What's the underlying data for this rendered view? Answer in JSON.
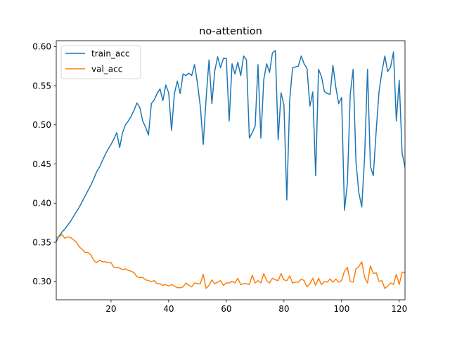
{
  "chart_data": {
    "type": "line",
    "title": "no-attention",
    "xlabel": "",
    "ylabel": "",
    "xlim": [
      1,
      122
    ],
    "ylim": [
      0.2765,
      0.6075
    ],
    "xticks": [
      20,
      40,
      60,
      80,
      100,
      120
    ],
    "yticks": [
      0.3,
      0.35,
      0.4,
      0.45,
      0.5,
      0.55,
      0.6
    ],
    "xtick_labels": [
      "20",
      "40",
      "60",
      "80",
      "100",
      "120"
    ],
    "ytick_labels": [
      "0.30",
      "0.35",
      "0.40",
      "0.45",
      "0.50",
      "0.55",
      "0.60"
    ],
    "grid": false,
    "legend_position": "top-left",
    "x": [
      1,
      2,
      3,
      4,
      5,
      6,
      7,
      8,
      9,
      10,
      11,
      12,
      13,
      14,
      15,
      16,
      17,
      18,
      19,
      20,
      21,
      22,
      23,
      24,
      25,
      26,
      27,
      28,
      29,
      30,
      31,
      32,
      33,
      34,
      35,
      36,
      37,
      38,
      39,
      40,
      41,
      42,
      43,
      44,
      45,
      46,
      47,
      48,
      49,
      50,
      51,
      52,
      53,
      54,
      55,
      56,
      57,
      58,
      59,
      60,
      61,
      62,
      63,
      64,
      65,
      66,
      67,
      68,
      69,
      70,
      71,
      72,
      73,
      74,
      75,
      76,
      77,
      78,
      79,
      80,
      81,
      82,
      83,
      84,
      85,
      86,
      87,
      88,
      89,
      90,
      91,
      92,
      93,
      94,
      95,
      96,
      97,
      98,
      99,
      100,
      101,
      102,
      103,
      104,
      105,
      106,
      107,
      108,
      109,
      110,
      111,
      112,
      113,
      114,
      115,
      116,
      117,
      118,
      119,
      120,
      121,
      122
    ],
    "series": [
      {
        "name": "train_acc",
        "color": "#1f77b4",
        "values": [
          0.351,
          0.358,
          0.363,
          0.367,
          0.372,
          0.377,
          0.383,
          0.389,
          0.395,
          0.402,
          0.409,
          0.416,
          0.423,
          0.431,
          0.44,
          0.446,
          0.454,
          0.462,
          0.469,
          0.475,
          0.482,
          0.49,
          0.471,
          0.49,
          0.5,
          0.505,
          0.511,
          0.519,
          0.528,
          0.522,
          0.505,
          0.497,
          0.487,
          0.527,
          0.532,
          0.54,
          0.546,
          0.531,
          0.551,
          0.541,
          0.493,
          0.54,
          0.556,
          0.54,
          0.565,
          0.563,
          0.566,
          0.563,
          0.577,
          0.553,
          0.523,
          0.475,
          0.534,
          0.583,
          0.527,
          0.569,
          0.587,
          0.573,
          0.585,
          0.585,
          0.505,
          0.578,
          0.565,
          0.58,
          0.563,
          0.588,
          0.583,
          0.483,
          0.49,
          0.498,
          0.577,
          0.483,
          0.558,
          0.578,
          0.567,
          0.592,
          0.595,
          0.481,
          0.541,
          0.525,
          0.404,
          0.532,
          0.573,
          0.574,
          0.575,
          0.588,
          0.578,
          0.572,
          0.524,
          0.542,
          0.435,
          0.571,
          0.562,
          0.543,
          0.54,
          0.539,
          0.576,
          0.548,
          0.527,
          0.535,
          0.391,
          0.425,
          0.539,
          0.571,
          0.452,
          0.413,
          0.395,
          0.46,
          0.571,
          0.447,
          0.435,
          0.492,
          0.543,
          0.568,
          0.588,
          0.568,
          0.574,
          0.593,
          0.505,
          0.557,
          0.464,
          0.446
        ]
      },
      {
        "name": "val_acc",
        "color": "#ff7f0e",
        "values": [
          0.356,
          0.357,
          0.36,
          0.355,
          0.357,
          0.356,
          0.353,
          0.35,
          0.344,
          0.341,
          0.337,
          0.337,
          0.334,
          0.327,
          0.324,
          0.327,
          0.325,
          0.325,
          0.324,
          0.324,
          0.318,
          0.318,
          0.317,
          0.315,
          0.316,
          0.314,
          0.313,
          0.311,
          0.306,
          0.305,
          0.305,
          0.302,
          0.301,
          0.3,
          0.301,
          0.297,
          0.297,
          0.295,
          0.296,
          0.294,
          0.296,
          0.294,
          0.292,
          0.292,
          0.293,
          0.298,
          0.295,
          0.293,
          0.298,
          0.297,
          0.297,
          0.309,
          0.291,
          0.295,
          0.302,
          0.297,
          0.299,
          0.301,
          0.295,
          0.298,
          0.298,
          0.3,
          0.298,
          0.304,
          0.296,
          0.297,
          0.297,
          0.296,
          0.308,
          0.298,
          0.301,
          0.298,
          0.31,
          0.301,
          0.298,
          0.304,
          0.302,
          0.301,
          0.31,
          0.302,
          0.301,
          0.307,
          0.298,
          0.299,
          0.299,
          0.303,
          0.301,
          0.293,
          0.297,
          0.304,
          0.295,
          0.304,
          0.296,
          0.3,
          0.299,
          0.303,
          0.299,
          0.303,
          0.299,
          0.301,
          0.313,
          0.318,
          0.3,
          0.299,
          0.316,
          0.319,
          0.325,
          0.305,
          0.298,
          0.32,
          0.31,
          0.311,
          0.3,
          0.301,
          0.291,
          0.294,
          0.298,
          0.296,
          0.309,
          0.296,
          0.312,
          0.311
        ]
      }
    ]
  }
}
